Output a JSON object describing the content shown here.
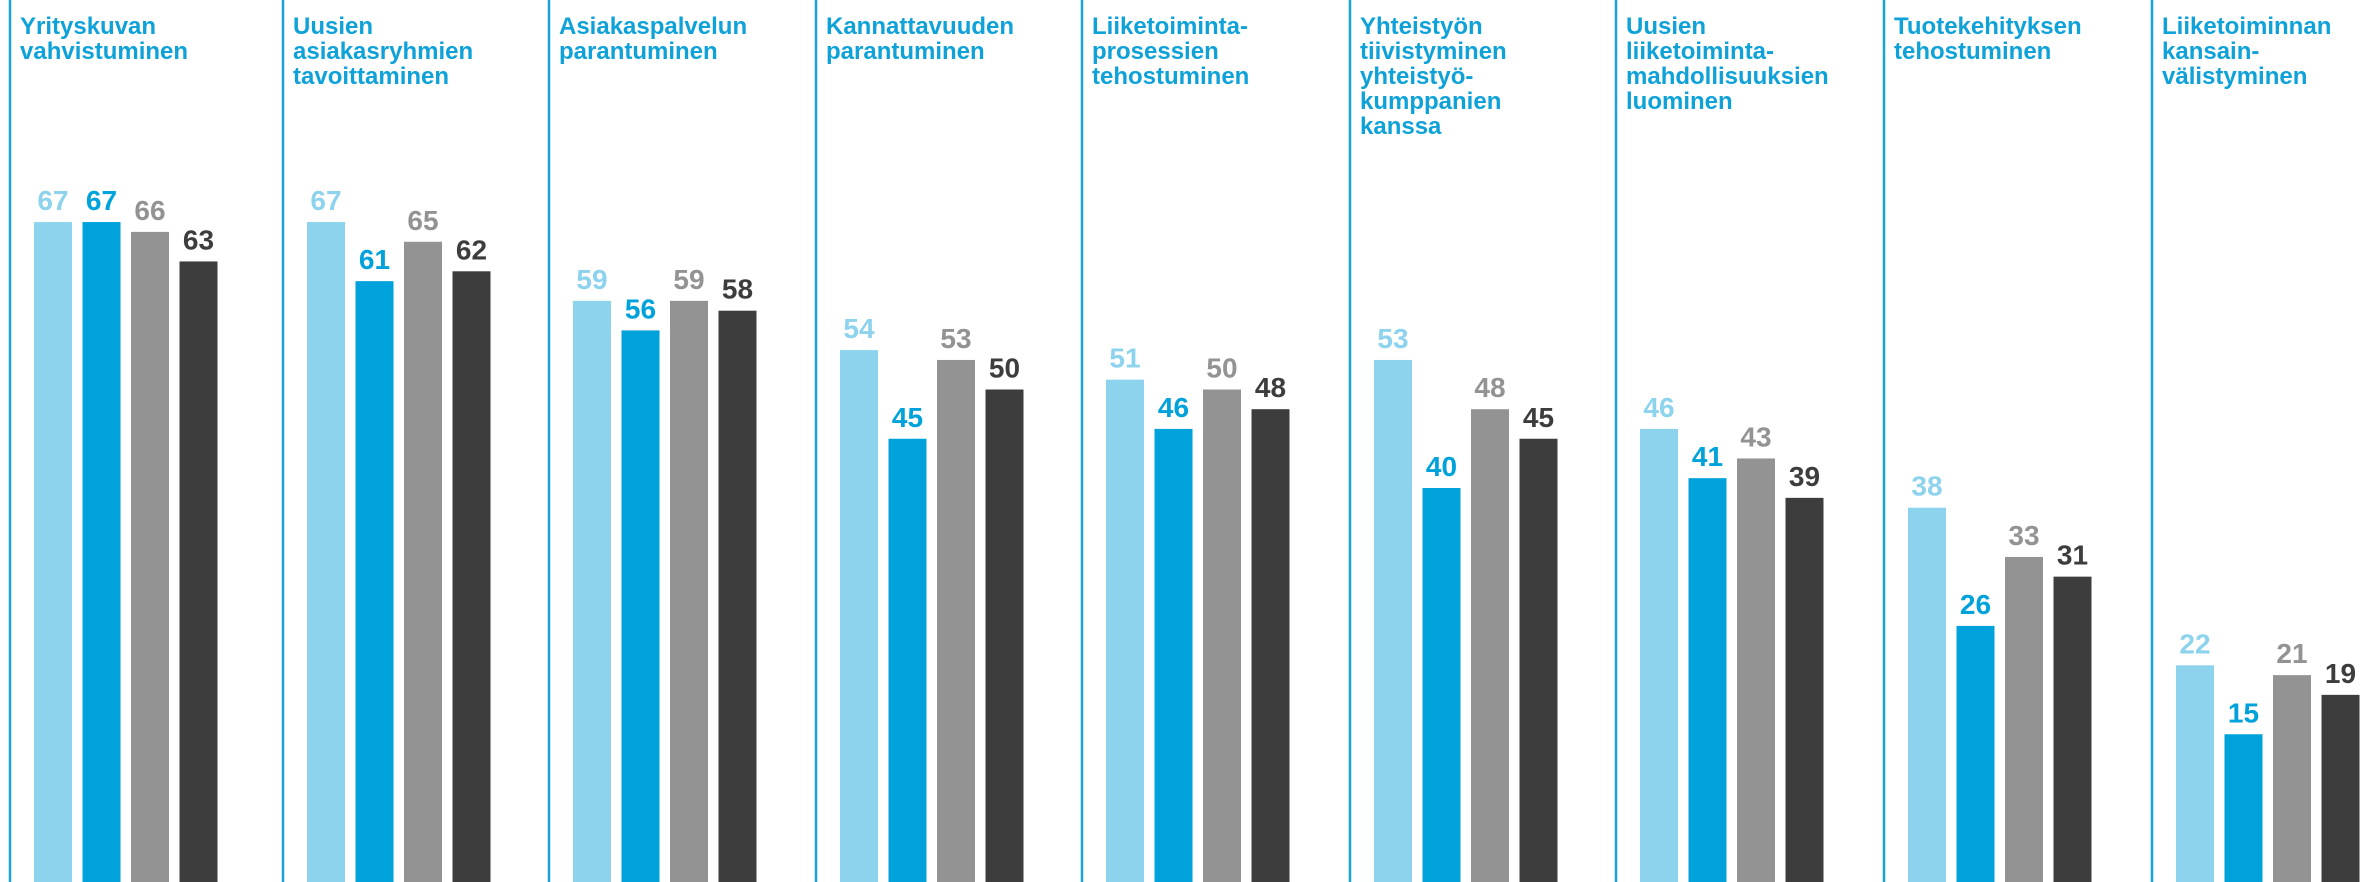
{
  "colors": {
    "title": "#0fa2d9",
    "divider": "#18a3d8",
    "series": [
      "#8dd3ee",
      "#00a2db",
      "#939393",
      "#3d3d3d"
    ]
  },
  "chart_data": {
    "type": "bar",
    "ylim": [
      0,
      75
    ],
    "grid": false,
    "categories": [
      [
        "Yrityskuvan",
        "vahvistuminen"
      ],
      [
        "Uusien",
        "asiakasryhmien",
        "tavoittaminen"
      ],
      [
        "Asiakaspalvelun",
        "parantuminen"
      ],
      [
        "Kannattavuuden",
        "parantuminen"
      ],
      [
        "Liiketoiminta-",
        "prosessien",
        "tehostuminen"
      ],
      [
        "Yhteistyön",
        "tiivistyminen",
        "yhteistyö-",
        "kumppanien",
        "kanssa"
      ],
      [
        "Uusien",
        "liiketoiminta-",
        "mahdollisuuksien",
        "luominen"
      ],
      [
        "Tuotekehityksen",
        "tehostuminen"
      ],
      [
        "Liiketoiminnan",
        "kansain-",
        "välistyminen"
      ]
    ],
    "series": [
      {
        "values": [
          67,
          67,
          59,
          54,
          51,
          53,
          46,
          38,
          22
        ]
      },
      {
        "values": [
          67,
          61,
          56,
          45,
          46,
          40,
          41,
          26,
          15
        ]
      },
      {
        "values": [
          66,
          65,
          59,
          53,
          50,
          48,
          43,
          33,
          21
        ]
      },
      {
        "values": [
          63,
          62,
          58,
          50,
          48,
          45,
          39,
          31,
          19
        ]
      }
    ]
  }
}
